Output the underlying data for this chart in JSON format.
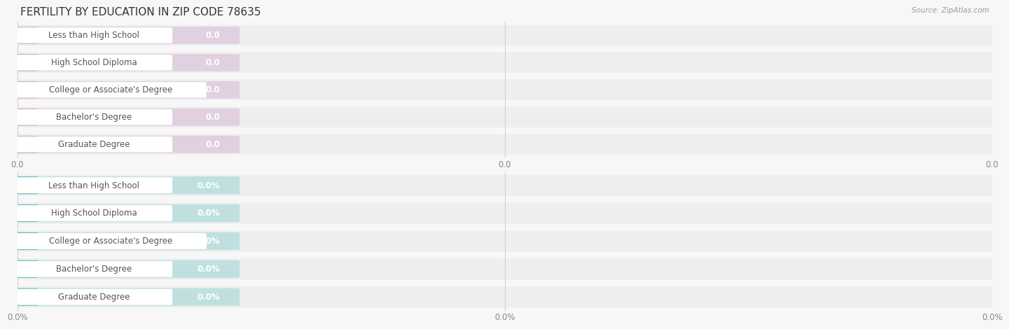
{
  "title": "FERTILITY BY EDUCATION IN ZIP CODE 78635",
  "source": "Source: ZipAtlas.com",
  "categories": [
    "Less than High School",
    "High School Diploma",
    "College or Associate's Degree",
    "Bachelor's Degree",
    "Graduate Degree"
  ],
  "values_top": [
    0.0,
    0.0,
    0.0,
    0.0,
    0.0
  ],
  "values_bottom": [
    0.0,
    0.0,
    0.0,
    0.0,
    0.0
  ],
  "top_bar_color": "#d4a8cc",
  "top_bar_bg": "#e0d0e0",
  "bottom_bar_color": "#5bbfbf",
  "bottom_bar_bg": "#c0e0e0",
  "top_value_suffix": "",
  "bottom_value_suffix": "%",
  "xtick_labels_top": [
    "0.0",
    "0.0",
    "0.0"
  ],
  "xtick_labels_bottom": [
    "0.0%",
    "0.0%",
    "0.0%"
  ],
  "bg_color": "#f7f7f7",
  "row_bg_color": "#eeeeee",
  "label_bg": "#ffffff",
  "title_fontsize": 11,
  "label_fontsize": 8.5,
  "value_fontsize": 8.5,
  "tick_fontsize": 8.5,
  "source_fontsize": 7.5
}
